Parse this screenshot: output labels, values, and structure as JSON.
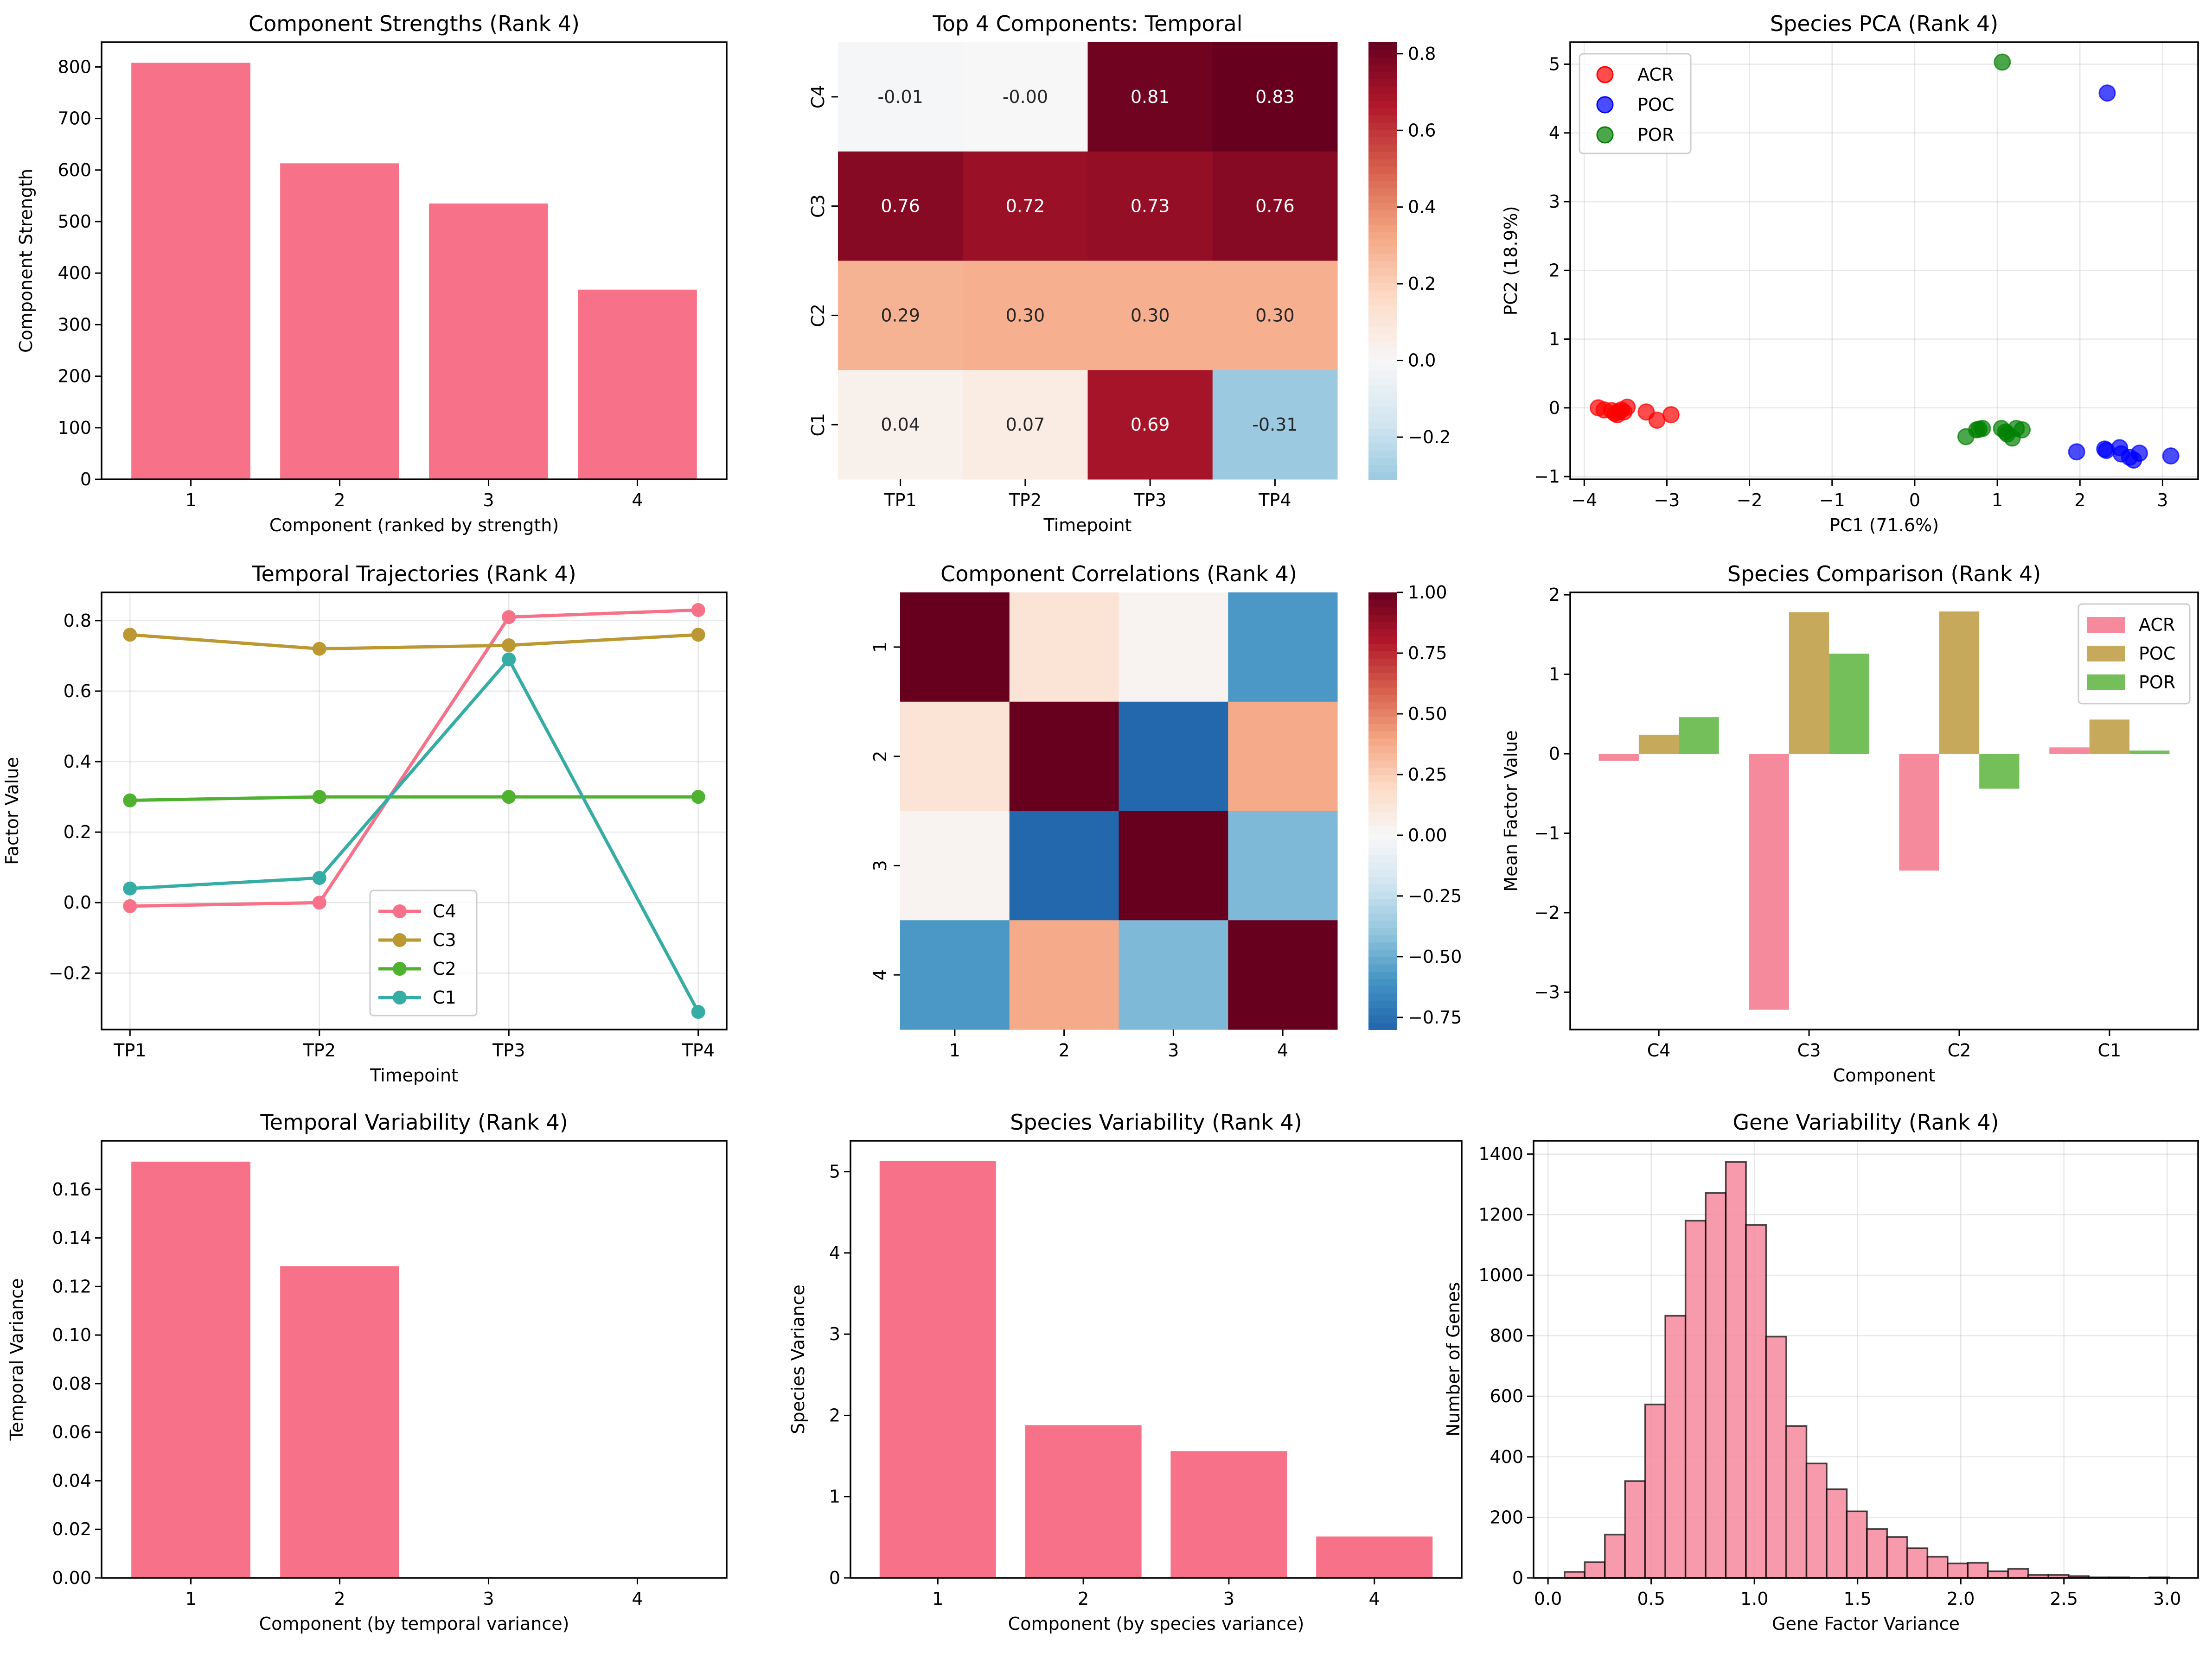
{
  "figure": {
    "panel_count": 9,
    "layout": "3x3 grid"
  },
  "chart_data": [
    {
      "id": "strengths",
      "type": "bar",
      "title": "Component Strengths (Rank 4)",
      "xlabel": "Component (ranked by strength)",
      "ylabel": "Component Strength",
      "categories": [
        "1",
        "2",
        "3",
        "4"
      ],
      "values": [
        808,
        613,
        535,
        368
      ],
      "ylim": [
        0,
        848
      ],
      "yticks": [
        0,
        100,
        200,
        300,
        400,
        500,
        600,
        700,
        800
      ],
      "color": "#f77189",
      "grid": false
    },
    {
      "id": "temporal-heatmap",
      "type": "heatmap",
      "title": "Top 4 Components: Temporal",
      "xlabel": "Timepoint",
      "ylabel": "",
      "columns": [
        "TP1",
        "TP2",
        "TP3",
        "TP4"
      ],
      "rows": [
        "C4",
        "C3",
        "C2",
        "C1"
      ],
      "values": [
        [
          -0.01,
          -0.0,
          0.81,
          0.83
        ],
        [
          0.76,
          0.72,
          0.73,
          0.76
        ],
        [
          0.29,
          0.3,
          0.3,
          0.3
        ],
        [
          0.04,
          0.07,
          0.69,
          -0.31
        ]
      ],
      "cell_labels": [
        [
          "-0.01",
          "-0.00",
          "0.81",
          "0.83"
        ],
        [
          "0.76",
          "0.72",
          "0.73",
          "0.76"
        ],
        [
          "0.29",
          "0.30",
          "0.30",
          "0.30"
        ],
        [
          "0.04",
          "0.07",
          "0.69",
          "-0.31"
        ]
      ],
      "colormap": "RdBu_r",
      "center": 0,
      "vmin": -0.31,
      "vmax": 0.83,
      "colorbar_ticks": [
        -0.2,
        0.0,
        0.2,
        0.4,
        0.6,
        0.8
      ],
      "colorbar_tick_labels": [
        "−0.2",
        "0.0",
        "0.2",
        "0.4",
        "0.6",
        "0.8"
      ]
    },
    {
      "id": "pca",
      "type": "scatter",
      "title": "Species PCA (Rank 4)",
      "xlabel": "PC1 (71.6%)",
      "ylabel": "PC2 (18.9%)",
      "xlim": [
        -4.17,
        3.43
      ],
      "ylim": [
        -1.04,
        5.32
      ],
      "xticks": [
        -4,
        -3,
        -2,
        -1,
        0,
        1,
        2,
        3
      ],
      "xtick_labels": [
        "−4",
        "−3",
        "−2",
        "−1",
        "0",
        "1",
        "2",
        "3"
      ],
      "yticks": [
        -1,
        0,
        1,
        2,
        3,
        4,
        5
      ],
      "ytick_labels": [
        "−1",
        "0",
        "1",
        "2",
        "3",
        "4",
        "5"
      ],
      "grid": true,
      "legend_position": "top-left",
      "series": [
        {
          "name": "ACR",
          "color": "#ff0000",
          "points": [
            [
              -3.83,
              0.0
            ],
            [
              -3.76,
              -0.03
            ],
            [
              -3.67,
              -0.04
            ],
            [
              -3.63,
              -0.08
            ],
            [
              -3.6,
              -0.1
            ],
            [
              -3.58,
              -0.05
            ],
            [
              -3.55,
              -0.03
            ],
            [
              -3.52,
              -0.06
            ],
            [
              -3.48,
              0.01
            ],
            [
              -3.25,
              -0.06
            ],
            [
              -3.12,
              -0.18
            ],
            [
              -2.95,
              -0.1
            ]
          ]
        },
        {
          "name": "POC",
          "color": "#0000ff",
          "points": [
            [
              2.33,
              4.58
            ],
            [
              1.96,
              -0.64
            ],
            [
              2.3,
              -0.6
            ],
            [
              2.32,
              -0.62
            ],
            [
              2.48,
              -0.58
            ],
            [
              2.5,
              -0.67
            ],
            [
              2.6,
              -0.72
            ],
            [
              2.65,
              -0.76
            ],
            [
              2.72,
              -0.66
            ],
            [
              3.1,
              -0.7
            ]
          ]
        },
        {
          "name": "POR",
          "color": "#008000",
          "points": [
            [
              1.06,
              5.03
            ],
            [
              0.62,
              -0.42
            ],
            [
              0.75,
              -0.32
            ],
            [
              0.78,
              -0.31
            ],
            [
              0.82,
              -0.3
            ],
            [
              1.05,
              -0.3
            ],
            [
              1.1,
              -0.35
            ],
            [
              1.12,
              -0.38
            ],
            [
              1.18,
              -0.44
            ],
            [
              1.23,
              -0.3
            ],
            [
              1.3,
              -0.32
            ]
          ]
        }
      ]
    },
    {
      "id": "trajectories",
      "type": "line",
      "title": "Temporal Trajectories (Rank 4)",
      "xlabel": "Timepoint",
      "ylabel": "Factor Value",
      "categories": [
        "TP1",
        "TP2",
        "TP3",
        "TP4"
      ],
      "ylim": [
        -0.36,
        0.88
      ],
      "yticks": [
        -0.2,
        0.0,
        0.2,
        0.4,
        0.6,
        0.8
      ],
      "ytick_labels": [
        "−0.2",
        "0.0",
        "0.2",
        "0.4",
        "0.6",
        "0.8"
      ],
      "grid": true,
      "legend_position": "lower-center",
      "series": [
        {
          "name": "C4",
          "color": "#f77189",
          "values": [
            -0.01,
            0.0,
            0.81,
            0.83
          ]
        },
        {
          "name": "C3",
          "color": "#bb9832",
          "values": [
            0.76,
            0.72,
            0.73,
            0.76
          ]
        },
        {
          "name": "C2",
          "color": "#50b131",
          "values": [
            0.29,
            0.3,
            0.3,
            0.3
          ]
        },
        {
          "name": "C1",
          "color": "#36ada4",
          "values": [
            0.04,
            0.07,
            0.69,
            -0.31
          ]
        }
      ]
    },
    {
      "id": "correlations",
      "type": "heatmap",
      "title": "Component Correlations (Rank 4)",
      "xlabel": "",
      "ylabel": "",
      "columns": [
        "1",
        "2",
        "3",
        "4"
      ],
      "rows": [
        "1",
        "2",
        "3",
        "4"
      ],
      "values": [
        [
          1.0,
          0.14,
          0.03,
          -0.58
        ],
        [
          0.14,
          1.0,
          -0.79,
          0.38
        ],
        [
          0.03,
          -0.79,
          1.0,
          -0.45
        ],
        [
          -0.58,
          0.38,
          -0.45,
          1.0
        ]
      ],
      "colormap": "RdBu_r",
      "center": 0,
      "vmin": -0.8,
      "vmax": 1.0,
      "colorbar_ticks": [
        -0.75,
        -0.5,
        -0.25,
        0.0,
        0.25,
        0.5,
        0.75,
        1.0
      ],
      "colorbar_tick_labels": [
        "−0.75",
        "−0.50",
        "−0.25",
        "0.00",
        "0.25",
        "0.50",
        "0.75",
        "1.00"
      ]
    },
    {
      "id": "species-comparison",
      "type": "bar",
      "title": "Species Comparison (Rank 4)",
      "xlabel": "Component",
      "ylabel": "Mean Factor Value",
      "categories": [
        "C4",
        "C3",
        "C2",
        "C1"
      ],
      "ylim": [
        -3.47,
        2.03
      ],
      "yticks": [
        -3,
        -2,
        -1,
        0,
        1,
        2
      ],
      "ytick_labels": [
        "−3",
        "−2",
        "−1",
        "0",
        "1",
        "2"
      ],
      "legend_position": "top-right",
      "series": [
        {
          "name": "ACR",
          "color": "#f68a9d",
          "values": [
            -0.09,
            -3.22,
            -1.47,
            0.08
          ]
        },
        {
          "name": "POC",
          "color": "#c6a95a",
          "values": [
            0.24,
            1.78,
            1.79,
            0.43
          ]
        },
        {
          "name": "POR",
          "color": "#74bf5a",
          "values": [
            0.46,
            1.26,
            -0.44,
            0.04
          ]
        }
      ]
    },
    {
      "id": "temporal-variability",
      "type": "bar",
      "title": "Temporal Variability (Rank 4)",
      "xlabel": "Component (by temporal variance)",
      "ylabel": "Temporal Variance",
      "categories": [
        "1",
        "2",
        "3",
        "4"
      ],
      "values": [
        0.1714,
        0.1284,
        0.0,
        0.0
      ],
      "ylim": [
        0,
        0.18
      ],
      "yticks": [
        0.0,
        0.02,
        0.04,
        0.06,
        0.08,
        0.1,
        0.12,
        0.14,
        0.16
      ],
      "ytick_labels": [
        "0.00",
        "0.02",
        "0.04",
        "0.06",
        "0.08",
        "0.10",
        "0.12",
        "0.14",
        "0.16"
      ],
      "color": "#f77189"
    },
    {
      "id": "species-variability",
      "type": "bar",
      "title": "Species Variability (Rank 4)",
      "xlabel": "Component (by species variance)",
      "ylabel": "Species Variance",
      "categories": [
        "1",
        "2",
        "3",
        "4"
      ],
      "values": [
        5.13,
        1.88,
        1.56,
        0.51
      ],
      "ylim": [
        0,
        5.38
      ],
      "yticks": [
        0,
        1,
        2,
        3,
        4,
        5
      ],
      "color": "#f77189"
    },
    {
      "id": "gene-variability",
      "type": "bar",
      "subtype": "histogram",
      "title": "Gene Variability (Rank 4)",
      "xlabel": "Gene Factor Variance",
      "ylabel": "Number of Genes",
      "bin_start": 0.08,
      "bin_width": 0.0977,
      "counts": [
        20,
        52,
        143,
        320,
        573,
        866,
        1180,
        1272,
        1374,
        1166,
        797,
        502,
        378,
        293,
        220,
        162,
        135,
        98,
        70,
        48,
        50,
        22,
        30,
        10,
        10,
        6,
        2,
        2,
        0,
        2
      ],
      "xlim": [
        -0.07,
        3.15
      ],
      "ylim": [
        0,
        1444
      ],
      "xticks": [
        0.0,
        0.5,
        1.0,
        1.5,
        2.0,
        2.5,
        3.0
      ],
      "xtick_labels": [
        "0.0",
        "0.5",
        "1.0",
        "1.5",
        "2.0",
        "2.5",
        "3.0"
      ],
      "yticks": [
        0,
        200,
        400,
        600,
        800,
        1000,
        1200,
        1400
      ],
      "grid": true,
      "color": "#f68a9d",
      "edge_color": "#000000"
    }
  ]
}
